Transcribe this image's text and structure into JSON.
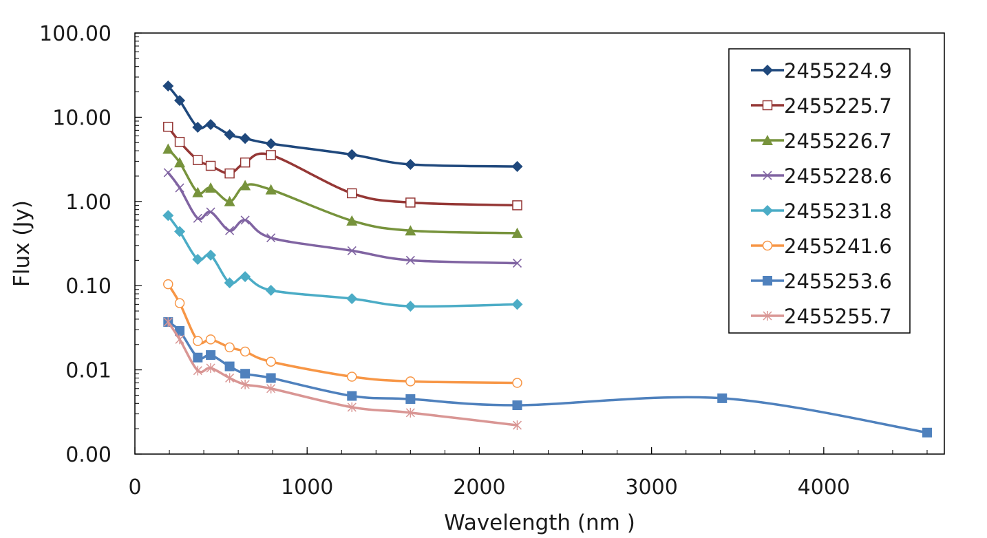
{
  "chart_data": {
    "type": "line",
    "title": "",
    "xlabel": "Wavelength (nm )",
    "ylabel": "Flux (Jy)",
    "xlim": [
      0,
      4700
    ],
    "ylim": [
      0.001,
      100
    ],
    "yscale": "log",
    "grid": false,
    "legend_position": "top-right",
    "x_ticks": [
      0,
      1000,
      2000,
      3000,
      4000
    ],
    "x_tick_labels": [
      "0",
      "1000",
      "2000",
      "3000",
      "4000"
    ],
    "y_ticks": [
      0.001,
      0.01,
      0.1,
      1,
      10,
      100
    ],
    "y_tick_labels": [
      "0.00",
      "0.01",
      "0.10",
      "1.00",
      "10.00",
      "100.00"
    ],
    "series": [
      {
        "name": "2455224.9",
        "color": "#1f487c",
        "marker": "diamond",
        "x": [
          193,
          260,
          365,
          440,
          550,
          640,
          790,
          1260,
          1600,
          2220
        ],
        "y": [
          23.5,
          15.8,
          7.6,
          8.2,
          6.2,
          5.6,
          4.85,
          3.6,
          2.75,
          2.6
        ]
      },
      {
        "name": "2455225.7",
        "color": "#953735",
        "marker": "square-open",
        "x": [
          193,
          260,
          365,
          440,
          550,
          640,
          790,
          1260,
          1600,
          2220
        ],
        "y": [
          7.7,
          5.1,
          3.1,
          2.65,
          2.15,
          2.9,
          3.55,
          1.25,
          0.97,
          0.9
        ]
      },
      {
        "name": "2455226.7",
        "color": "#77933c",
        "marker": "triangle",
        "x": [
          193,
          260,
          365,
          440,
          550,
          640,
          790,
          1260,
          1600,
          2220
        ],
        "y": [
          4.2,
          2.9,
          1.28,
          1.45,
          1.0,
          1.55,
          1.38,
          0.59,
          0.45,
          0.42
        ]
      },
      {
        "name": "2455228.6",
        "color": "#8064a2",
        "marker": "x",
        "x": [
          193,
          260,
          365,
          440,
          550,
          640,
          790,
          1260,
          1600,
          2220
        ],
        "y": [
          2.2,
          1.45,
          0.63,
          0.75,
          0.45,
          0.6,
          0.37,
          0.26,
          0.2,
          0.185
        ]
      },
      {
        "name": "2455231.8",
        "color": "#4bacc6",
        "marker": "diamond",
        "x": [
          193,
          260,
          365,
          440,
          550,
          640,
          790,
          1260,
          1600,
          2220
        ],
        "y": [
          0.68,
          0.44,
          0.205,
          0.23,
          0.108,
          0.128,
          0.088,
          0.07,
          0.057,
          0.06
        ]
      },
      {
        "name": "2455241.6",
        "color": "#f79646",
        "marker": "circle-open",
        "x": [
          193,
          260,
          365,
          440,
          550,
          640,
          790,
          1260,
          1600,
          2220
        ],
        "y": [
          0.104,
          0.062,
          0.022,
          0.023,
          0.0185,
          0.0165,
          0.0125,
          0.0083,
          0.0073,
          0.007
        ]
      },
      {
        "name": "2455253.6",
        "color": "#4f81bd",
        "marker": "square",
        "x": [
          193,
          260,
          365,
          440,
          550,
          640,
          790,
          1260,
          1600,
          2220,
          3410,
          4600
        ],
        "y": [
          0.037,
          0.029,
          0.014,
          0.015,
          0.011,
          0.009,
          0.008,
          0.0049,
          0.0045,
          0.0038,
          0.0046,
          0.0018
        ]
      },
      {
        "name": "2455255.7",
        "color": "#d99694",
        "marker": "star",
        "x": [
          193,
          260,
          365,
          440,
          550,
          640,
          790,
          1260,
          1600,
          2220
        ],
        "y": [
          0.037,
          0.023,
          0.0098,
          0.0105,
          0.008,
          0.0067,
          0.006,
          0.0036,
          0.0031,
          0.0022
        ]
      }
    ]
  }
}
